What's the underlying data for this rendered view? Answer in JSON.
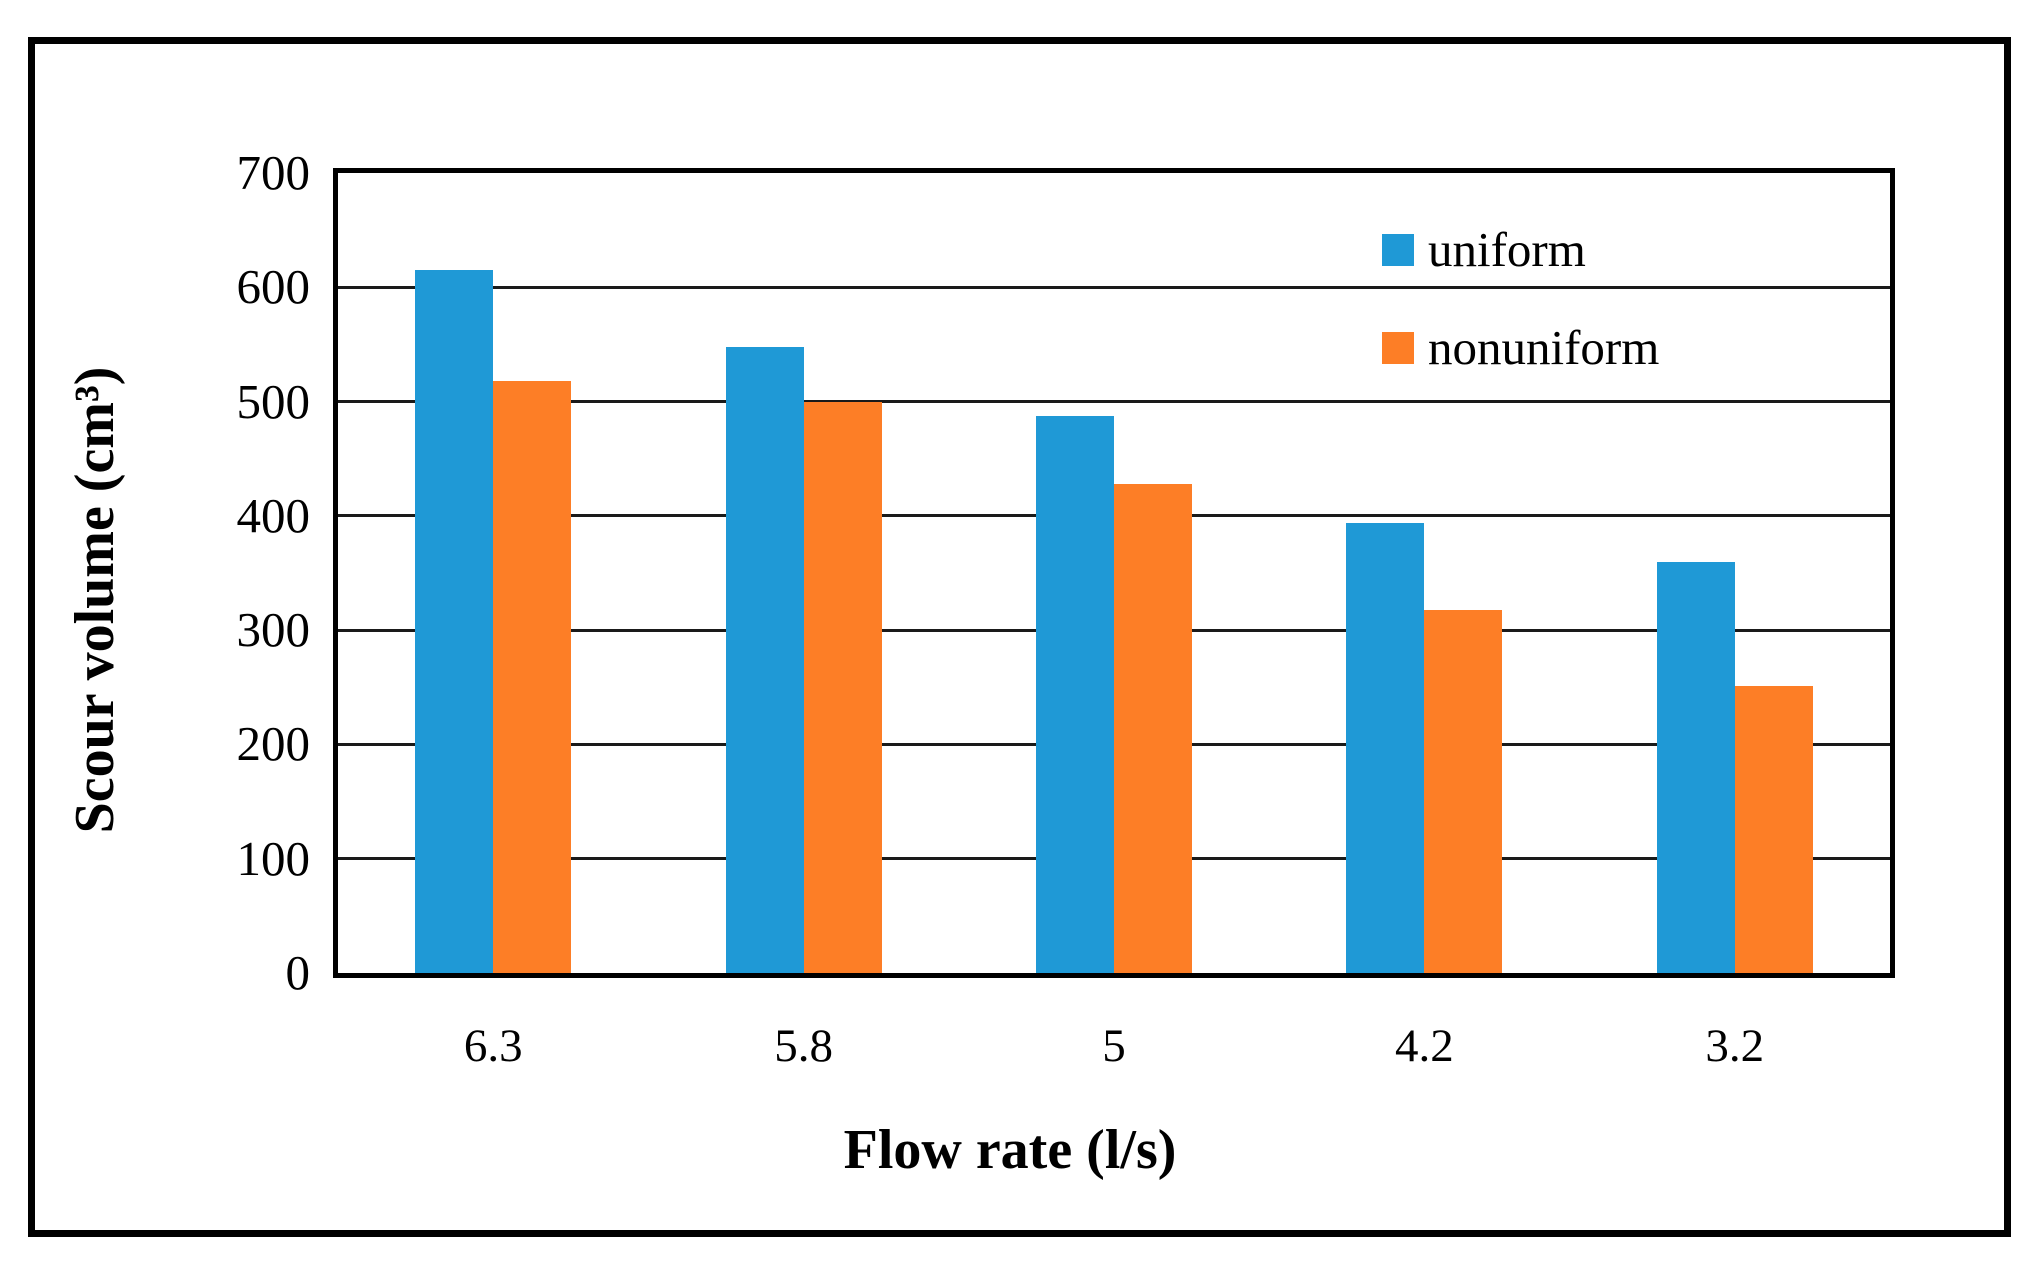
{
  "figure": {
    "background_color": "#ffffff",
    "border_color": "#000000",
    "gridline_color": "#1a1a1a"
  },
  "chart_data": {
    "type": "bar",
    "categories": [
      "6.3",
      "5.8",
      "5",
      "4.2",
      "3.2"
    ],
    "series": [
      {
        "name": "uniform",
        "color": "#1f99d6",
        "values": [
          615,
          548,
          487,
          394,
          360
        ]
      },
      {
        "name": "nonuniform",
        "color": "#fd7e26",
        "values": [
          518,
          500,
          428,
          318,
          251
        ]
      }
    ],
    "title": "",
    "xlabel": "Flow rate (l/s)",
    "ylabel": "Scour volume (cm³)",
    "ylim": [
      0,
      700
    ],
    "y_ticks": [
      0,
      100,
      200,
      300,
      400,
      500,
      600,
      700
    ],
    "grid": "horizontal",
    "legend_position": "top-right-inside"
  }
}
